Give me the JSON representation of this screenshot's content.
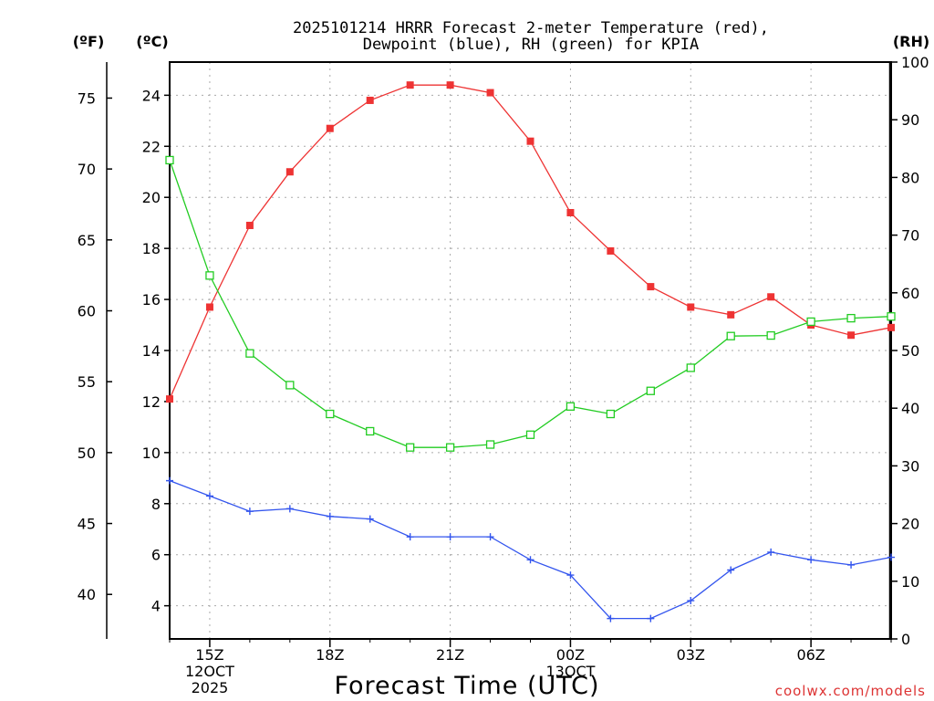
{
  "chart_data": {
    "type": "line",
    "title_line1": "2025101214 HRRR Forecast 2-meter Temperature (red),",
    "title_line2": "Dewpoint (blue), RH (green) for KPIA",
    "xlabel": "Forecast Time (UTC)",
    "watermark": "coolwx.com/models",
    "unit_f": "(ºF)",
    "unit_c": "(ºC)",
    "unit_rh": "(RH)",
    "x_hours": [
      14,
      15,
      16,
      17,
      18,
      19,
      20,
      21,
      22,
      23,
      24,
      25,
      26,
      27,
      28,
      29,
      30,
      31,
      32
    ],
    "xlim": [
      14,
      32
    ],
    "x_ticks": [
      {
        "hour": 15,
        "lines": [
          "15Z",
          "12OCT",
          "2025"
        ]
      },
      {
        "hour": 18,
        "lines": [
          "18Z"
        ]
      },
      {
        "hour": 21,
        "lines": [
          "21Z"
        ]
      },
      {
        "hour": 24,
        "lines": [
          "00Z",
          "13OCT"
        ]
      },
      {
        "hour": 27,
        "lines": [
          "03Z"
        ]
      },
      {
        "hour": 30,
        "lines": [
          "06Z"
        ]
      }
    ],
    "ylim_c": [
      2.7,
      25.3
    ],
    "y_ticks_c": [
      4,
      6,
      8,
      10,
      12,
      14,
      16,
      18,
      20,
      22,
      24
    ],
    "y_ticks_f": [
      40,
      45,
      50,
      55,
      60,
      65,
      70,
      75
    ],
    "ylim_rh": [
      0,
      100
    ],
    "y_ticks_rh": [
      0,
      10,
      20,
      30,
      40,
      50,
      60,
      70,
      80,
      90,
      100
    ],
    "series": [
      {
        "name": "Temperature",
        "axis": "c",
        "color": "#ee3333",
        "marker": "filled-square",
        "values": [
          12.1,
          15.7,
          18.9,
          21.0,
          22.7,
          23.8,
          24.4,
          24.4,
          24.1,
          22.2,
          19.4,
          17.9,
          16.5,
          15.7,
          15.4,
          16.1,
          15.0,
          14.6,
          14.9
        ]
      },
      {
        "name": "Dewpoint",
        "axis": "c",
        "color": "#3355ee",
        "marker": "plus",
        "values": [
          8.9,
          8.3,
          7.7,
          7.8,
          7.5,
          7.4,
          6.7,
          6.7,
          6.7,
          5.8,
          5.2,
          3.5,
          3.5,
          4.2,
          5.4,
          6.1,
          5.8,
          5.6,
          5.9
        ]
      },
      {
        "name": "RH",
        "axis": "rh",
        "color": "#22cc22",
        "marker": "open-square",
        "values": [
          83,
          63,
          49.5,
          44,
          39,
          36,
          33.2,
          33.2,
          33.7,
          35.4,
          40.3,
          39,
          43,
          47,
          52.5,
          52.6,
          55,
          55.6,
          55.9
        ]
      }
    ]
  }
}
